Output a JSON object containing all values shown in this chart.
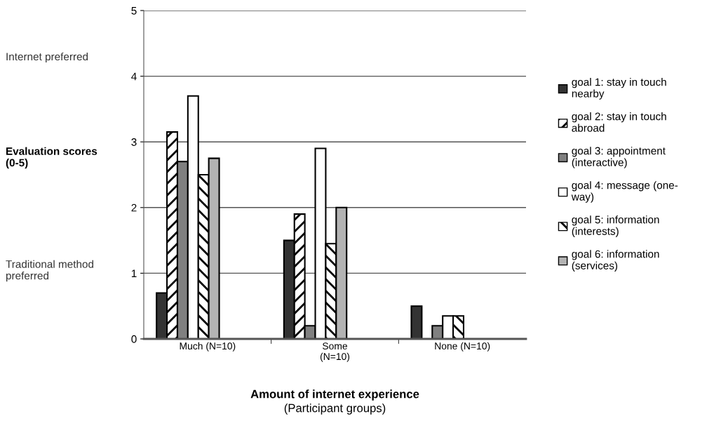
{
  "chart_data": {
    "type": "bar",
    "categories": [
      "Much (N=10)",
      "Some\n(N=10)",
      "None (N=10)"
    ],
    "series": [
      {
        "name": "goal 1: stay in touch\nnearby",
        "color": "#333333",
        "values": [
          0.7,
          1.5,
          0.5
        ]
      },
      {
        "name": "goal 2: stay in touch\nabroad",
        "color": "#000000",
        "values": [
          3.15,
          1.9,
          null
        ]
      },
      {
        "name": "goal 3: appointment\n(interactive)",
        "color": "#808080",
        "values": [
          2.7,
          0.2,
          0.2
        ]
      },
      {
        "name": "goal 4: message (one-\nway)",
        "color": "#ffffff",
        "values": [
          3.7,
          2.9,
          0.35
        ]
      },
      {
        "name": "goal 5: information\n(interests)",
        "color": "#000000",
        "values": [
          2.5,
          1.45,
          0.35
        ]
      },
      {
        "name": "goal 6: information\n(services)",
        "color": "#b3b3b3",
        "values": [
          2.75,
          2.0,
          null
        ]
      }
    ],
    "ylabel": "Evaluation scores\n(0-5)",
    "xlabel": "Amount of internet experience\n(Participant groups)",
    "annotations": [
      "Internet preferred",
      "Traditional method\npreferred"
    ],
    "ylim": [
      0,
      5
    ],
    "yticks": [
      0,
      1,
      2,
      3,
      4,
      5
    ],
    "grid": "y",
    "legend": "right"
  }
}
